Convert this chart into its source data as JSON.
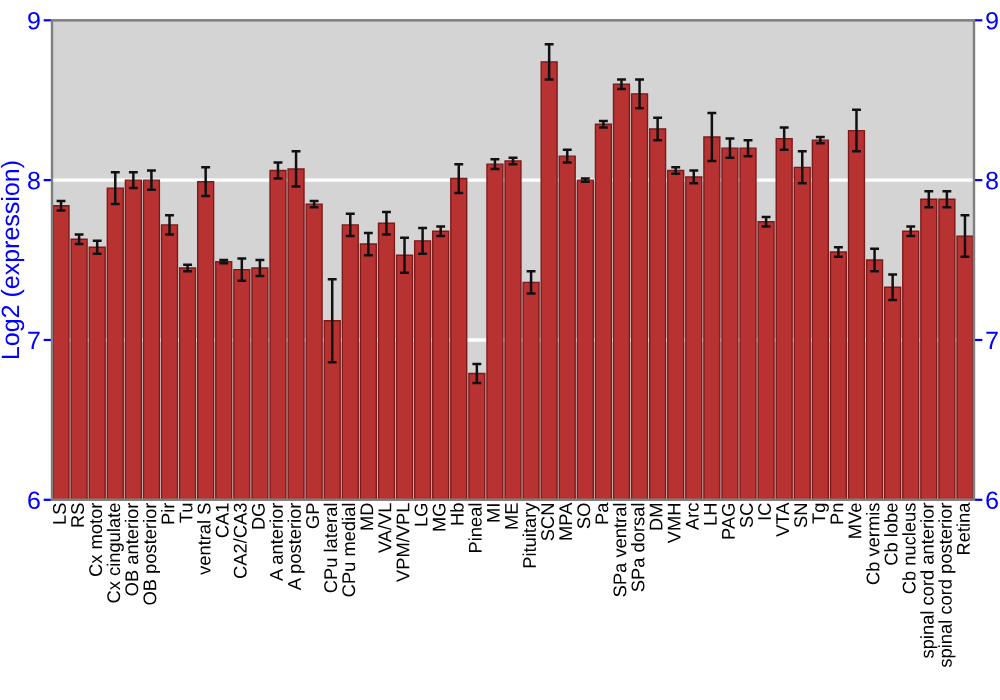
{
  "chart_data": {
    "type": "bar",
    "ylabel": "Log2 (expression)",
    "categories": [
      "LS",
      "RS",
      "Cx motor",
      "Cx cingulate",
      "OB anterior",
      "OB posterior",
      "Pir",
      "Tu",
      "ventral S",
      "CA1",
      "CA2/CA3",
      "DG",
      "A anterior",
      "A posterior",
      "GP",
      "CPu lateral",
      "CPu medial",
      "MD",
      "VA/VL",
      "VPM/VPL",
      "LG",
      "MG",
      "Hb",
      "Pineal",
      "MI",
      "ME",
      "Pituitary",
      "SCN",
      "MPA",
      "SO",
      "Pa",
      "SPa ventral",
      "SPa dorsal",
      "DM",
      "VMH",
      "Arc",
      "LH",
      "PAG",
      "SC",
      "IC",
      "VTA",
      "SN",
      "Tg",
      "Pn",
      "MVe",
      "Cb vermis",
      "Cb lobe",
      "Cb nucleus",
      "spinal cord anterior",
      "spinal cord posterior",
      "Retina"
    ],
    "values": [
      7.84,
      7.63,
      7.58,
      7.95,
      8.0,
      8.0,
      7.72,
      7.45,
      7.99,
      7.49,
      7.44,
      7.45,
      8.06,
      8.07,
      7.85,
      7.12,
      7.72,
      7.6,
      7.73,
      7.53,
      7.62,
      7.68,
      8.01,
      6.79,
      8.1,
      8.12,
      7.36,
      8.74,
      8.15,
      8.0,
      8.35,
      8.6,
      8.54,
      8.32,
      8.06,
      8.02,
      8.27,
      8.2,
      8.2,
      7.74,
      8.26,
      8.08,
      8.25,
      7.55,
      8.31,
      7.5,
      7.33,
      7.68,
      7.88,
      7.88,
      7.65
    ],
    "errors": [
      0.03,
      0.03,
      0.04,
      0.1,
      0.05,
      0.06,
      0.06,
      0.02,
      0.09,
      0.01,
      0.07,
      0.05,
      0.05,
      0.11,
      0.02,
      0.26,
      0.07,
      0.07,
      0.07,
      0.11,
      0.08,
      0.03,
      0.09,
      0.06,
      0.03,
      0.02,
      0.07,
      0.11,
      0.04,
      0.01,
      0.02,
      0.03,
      0.09,
      0.07,
      0.02,
      0.04,
      0.15,
      0.06,
      0.05,
      0.03,
      0.07,
      0.1,
      0.02,
      0.03,
      0.13,
      0.07,
      0.08,
      0.03,
      0.05,
      0.05,
      0.13
    ],
    "color": "#b83232",
    "ylim": [
      6,
      9
    ],
    "yticks": [
      6,
      7,
      8,
      9
    ],
    "y2lim": [
      6,
      9
    ],
    "y2ticks": [
      6,
      7,
      8,
      9
    ],
    "grid": "y"
  }
}
